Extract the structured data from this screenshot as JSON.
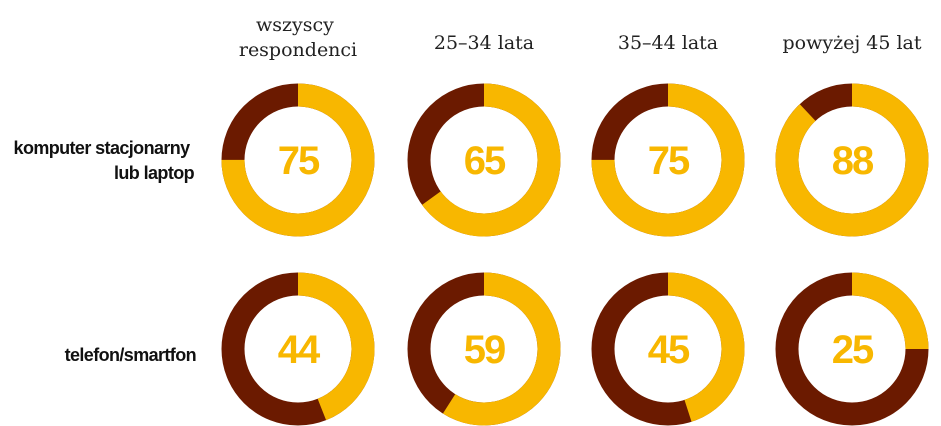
{
  "chart_data": {
    "type": "donut",
    "columns": [
      "wszyscy respondenci",
      "25–34 lata",
      "35–44 lata",
      "powyżej 45 lat"
    ],
    "column_lines": [
      [
        "wszyscy",
        "respondenci"
      ],
      [
        "25–34 lata"
      ],
      [
        "35–44 lata"
      ],
      [
        "powyżej 45 lat"
      ]
    ],
    "rows": [
      {
        "label": "komputer stacjonarny lub laptop",
        "label_lines": [
          "komputer stacjonarny",
          "lub laptop"
        ],
        "values": [
          75,
          65,
          75,
          88
        ]
      },
      {
        "label": "telefon/smartfon",
        "label_lines": [
          "telefon/smartfon"
        ],
        "values": [
          44,
          59,
          45,
          25
        ]
      }
    ],
    "max": 100,
    "colors": {
      "value": "#F8B700",
      "remainder": "#6B1A00",
      "number": "#F8B700"
    }
  }
}
